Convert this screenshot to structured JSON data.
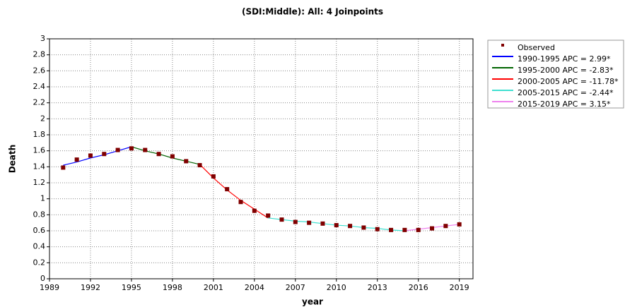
{
  "chart_data": {
    "type": "line",
    "title": "(SDI:Middle): All: 4 Joinpoints",
    "xlabel": "year",
    "ylabel": "Death",
    "xlim": [
      1989,
      2020
    ],
    "xticks": [
      1989,
      1992,
      1995,
      1998,
      2001,
      2004,
      2007,
      2010,
      2013,
      2016,
      2019
    ],
    "ylim": [
      0,
      3
    ],
    "yticks": [
      0,
      0.2,
      0.4,
      0.6,
      0.8,
      1,
      1.2,
      1.4,
      1.6,
      1.8,
      2,
      2.2,
      2.4,
      2.6,
      2.8,
      3
    ],
    "grid": true,
    "legend": "outside right",
    "series": [
      {
        "name": "Observed",
        "color": "#800000",
        "style": "markers",
        "x": [
          1990,
          1991,
          1992,
          1993,
          1994,
          1995,
          1996,
          1997,
          1998,
          1999,
          2000,
          2001,
          2002,
          2003,
          2004,
          2005,
          2006,
          2007,
          2008,
          2009,
          2010,
          2011,
          2012,
          2013,
          2014,
          2015,
          2016,
          2017,
          2018,
          2019
        ],
        "values": [
          1.39,
          1.49,
          1.54,
          1.56,
          1.61,
          1.63,
          1.61,
          1.56,
          1.53,
          1.47,
          1.42,
          1.28,
          1.12,
          0.96,
          0.85,
          0.79,
          0.74,
          0.71,
          0.7,
          0.69,
          0.67,
          0.66,
          0.64,
          0.62,
          0.61,
          0.61,
          0.61,
          0.63,
          0.66,
          0.68
        ]
      },
      {
        "name": "1990-1995 APC =  2.99*",
        "color": "#0000ff",
        "style": "line",
        "x": [
          1990,
          1991,
          1992,
          1993,
          1994,
          1995
        ],
        "values": [
          1.42,
          1.46,
          1.51,
          1.55,
          1.6,
          1.65
        ]
      },
      {
        "name": "1995-2000 APC = -2.83*",
        "color": "#006400",
        "style": "line",
        "x": [
          1995,
          1996,
          1997,
          1998,
          1999,
          2000
        ],
        "values": [
          1.65,
          1.6,
          1.56,
          1.51,
          1.47,
          1.43
        ]
      },
      {
        "name": "2000-2005 APC = -11.78*",
        "color": "#ff0000",
        "style": "line",
        "x": [
          2000,
          2001,
          2002,
          2003,
          2004,
          2005
        ],
        "values": [
          1.43,
          1.26,
          1.11,
          0.98,
          0.87,
          0.76
        ]
      },
      {
        "name": "2005-2015 APC = -2.44*",
        "color": "#40e0d0",
        "style": "line",
        "x": [
          2005,
          2006,
          2007,
          2008,
          2009,
          2010,
          2011,
          2012,
          2013,
          2014,
          2015
        ],
        "values": [
          0.76,
          0.74,
          0.72,
          0.71,
          0.69,
          0.67,
          0.66,
          0.64,
          0.63,
          0.61,
          0.6
        ]
      },
      {
        "name": "2015-2019 APC =  3.15*",
        "color": "#ee82ee",
        "style": "line",
        "x": [
          2015,
          2016,
          2017,
          2018,
          2019
        ],
        "values": [
          0.6,
          0.62,
          0.64,
          0.66,
          0.68
        ]
      }
    ]
  }
}
